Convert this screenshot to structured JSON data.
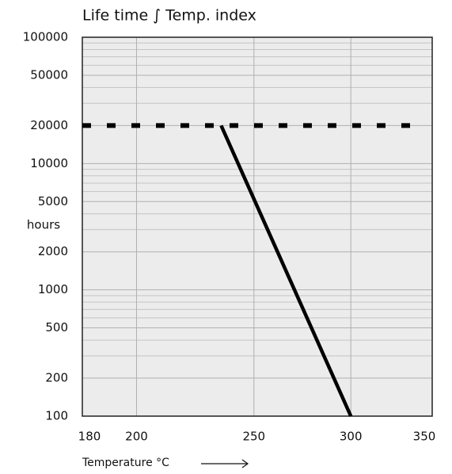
{
  "chart_data": {
    "type": "line",
    "title": "Life time ∫ Temp. index",
    "xlabel": "Temperature °C",
    "ylabel": "hours",
    "xscale": "reciprocal-kelvin",
    "yscale": "log",
    "xlim": [
      180,
      350
    ],
    "xticks": [
      180,
      200,
      250,
      300,
      350
    ],
    "ylim": [
      100,
      100000
    ],
    "yticks": [
      100,
      200,
      500,
      1000,
      2000,
      5000,
      10000,
      20000,
      50000,
      100000
    ],
    "yminor": [
      300,
      400,
      600,
      700,
      800,
      900,
      3000,
      4000,
      6000,
      7000,
      8000,
      9000,
      30000,
      40000,
      60000,
      70000,
      80000,
      90000
    ],
    "grid": true,
    "series": [
      {
        "color": "#000000",
        "line_style": "dashed",
        "x": [
          180,
          340
        ],
        "values": [
          20000,
          20000
        ]
      },
      {
        "color": "#000000",
        "line_style": "solid",
        "x": [
          235,
          300
        ],
        "values": [
          20000,
          100
        ]
      }
    ]
  }
}
